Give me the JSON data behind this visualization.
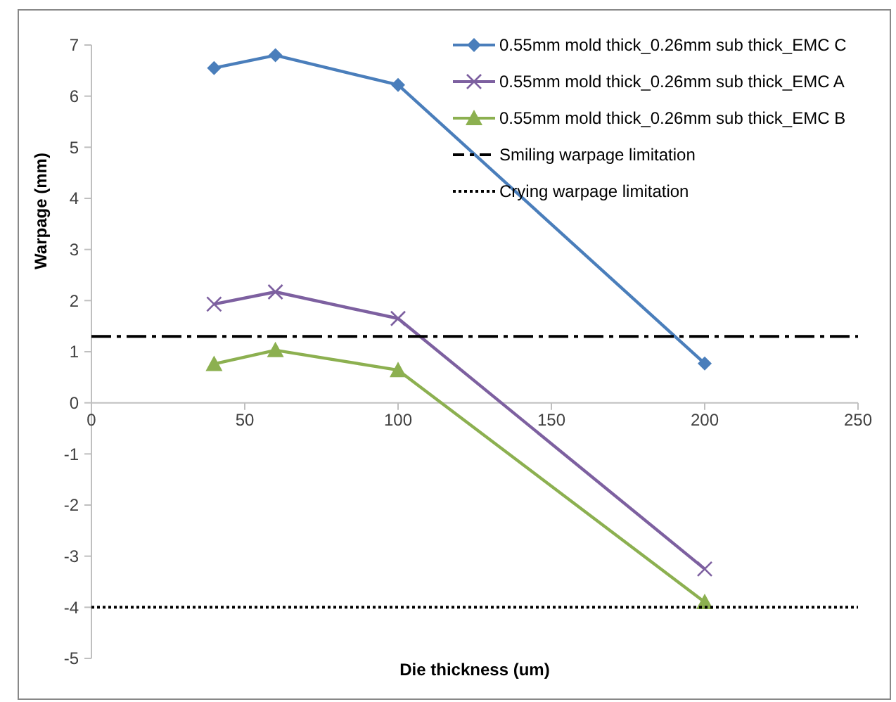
{
  "chart_data": {
    "type": "line",
    "xlabel": "Die thickness (um)",
    "ylabel": "Warpage (mm)",
    "xlim": [
      0,
      250
    ],
    "xticks": [
      0,
      50,
      100,
      150,
      200,
      250
    ],
    "ylim": [
      -5,
      7
    ],
    "yticks": [
      -5,
      -4,
      -3,
      -2,
      -1,
      0,
      1,
      2,
      3,
      4,
      5,
      6,
      7
    ],
    "grid": false,
    "legend": "top right",
    "x": [
      40,
      60,
      100,
      200
    ],
    "series": [
      {
        "name": "0.55mm mold thick_0.26mm sub thick_EMC C",
        "color": "#4a7ebb",
        "values": [
          6.55,
          6.8,
          6.22,
          0.77
        ],
        "marker": "diamond",
        "line_style": "solid"
      },
      {
        "name": "0.55mm mold thick_0.26mm sub thick_EMC A",
        "color": "#7d60a0",
        "values": [
          1.93,
          2.17,
          1.65,
          -3.25
        ],
        "marker": "cross",
        "line_style": "solid"
      },
      {
        "name": "0.55mm mold thick_0.26mm sub thick_EMC B",
        "color": "#8cb050",
        "values": [
          0.76,
          1.03,
          0.64,
          -3.9
        ],
        "marker": "triangle",
        "line_style": "solid"
      }
    ],
    "ref_lines": [
      {
        "axis": "y",
        "value": 1.3,
        "label": "Smiling warpage limitation",
        "color": "#000000",
        "line_style": "dashed"
      },
      {
        "axis": "y",
        "value": -4,
        "label": "Crying warpage limitation",
        "color": "#000000",
        "line_style": "dotted"
      }
    ]
  }
}
